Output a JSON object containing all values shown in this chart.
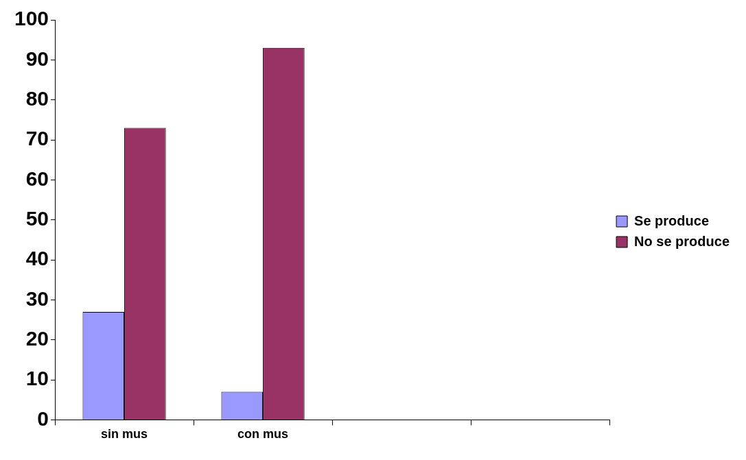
{
  "chart_data": {
    "type": "bar",
    "categories": [
      "sin mus",
      "con mus",
      null,
      null
    ],
    "series": [
      {
        "name": "Se produce",
        "color": "#9999ff",
        "values": [
          27,
          7,
          null,
          null
        ]
      },
      {
        "name": "No se produce",
        "color": "#993366",
        "values": [
          73,
          93,
          null,
          null
        ]
      }
    ],
    "ylim": [
      0,
      100
    ],
    "yticks": [
      0,
      10,
      20,
      30,
      40,
      50,
      60,
      70,
      80,
      90,
      100
    ],
    "legend": "right",
    "grid": false
  }
}
